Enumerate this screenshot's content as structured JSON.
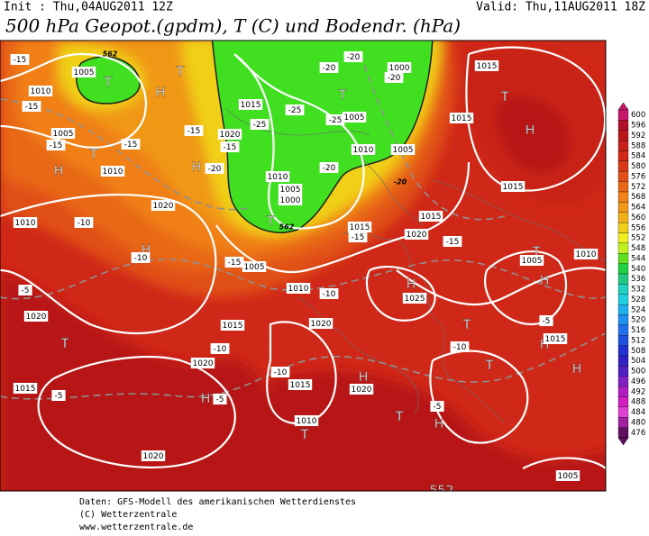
{
  "header": {
    "init": "Init : Thu,04AUG2011 12Z",
    "valid": "Valid: Thu,11AUG2011 18Z",
    "title": "500 hPa Geopot.(gpdm), T (C) und Bodendr. (hPa)"
  },
  "map": {
    "labels": [
      "1005",
      "T",
      "T",
      "H",
      "1010",
      "-15",
      "-15",
      "1005",
      "-15",
      "-15",
      "T",
      "H",
      "1010",
      "-15",
      "1020",
      "-15",
      "H",
      "-20",
      "1015",
      "-25",
      "-25",
      "-25",
      "1005",
      "T",
      "-20",
      "1000",
      "-20",
      "-20",
      "1010",
      "1005",
      "-20",
      "1010",
      "1005",
      "1000",
      "T",
      "1015",
      "-15",
      "1015",
      "1020",
      "1015",
      "T",
      "H",
      "1015",
      "1015",
      "1020",
      "1010",
      "-10",
      "H",
      "-10",
      "-15",
      "1005",
      "1010",
      "-15",
      "T",
      "1005",
      "H",
      "1010",
      "1025",
      "H",
      "-10",
      "1020",
      "-5",
      "1020",
      "T",
      "1015",
      "-10",
      "1020",
      "1015",
      "-5",
      "H",
      "-5",
      "-10",
      "1015",
      "1020",
      "H",
      "-10",
      "T",
      "-5",
      "H",
      "T",
      "H",
      "1015",
      "1010",
      "T",
      "-5",
      "H",
      "T",
      "1020",
      "1005",
      "552",
      "562",
      "562",
      "-20"
    ]
  },
  "legend": {
    "levels": [
      {
        "value": 600,
        "color": "#c8186e"
      },
      {
        "value": 596,
        "color": "#b0102a"
      },
      {
        "value": 592,
        "color": "#b81818"
      },
      {
        "value": 588,
        "color": "#c82018"
      },
      {
        "value": 584,
        "color": "#d02818"
      },
      {
        "value": 580,
        "color": "#d83818"
      },
      {
        "value": 576,
        "color": "#e05018"
      },
      {
        "value": 572,
        "color": "#e86818"
      },
      {
        "value": 568,
        "color": "#f08018"
      },
      {
        "value": 564,
        "color": "#f09818"
      },
      {
        "value": 560,
        "color": "#f0b018"
      },
      {
        "value": 556,
        "color": "#f0d018"
      },
      {
        "value": 552,
        "color": "#f0f020"
      },
      {
        "value": 548,
        "color": "#c0f020"
      },
      {
        "value": 544,
        "color": "#60e020"
      },
      {
        "value": 540,
        "color": "#20d040"
      },
      {
        "value": 536,
        "color": "#20c880"
      },
      {
        "value": 532,
        "color": "#20d0c0"
      },
      {
        "value": 528,
        "color": "#20d0e0"
      },
      {
        "value": 524,
        "color": "#20b0f0"
      },
      {
        "value": 520,
        "color": "#2090f0"
      },
      {
        "value": 516,
        "color": "#2070f0"
      },
      {
        "value": 512,
        "color": "#2050e0"
      },
      {
        "value": 508,
        "color": "#2030d0"
      },
      {
        "value": 504,
        "color": "#3020c0"
      },
      {
        "value": 500,
        "color": "#5020c0"
      },
      {
        "value": 496,
        "color": "#8020c0"
      },
      {
        "value": 492,
        "color": "#b020c0"
      },
      {
        "value": 488,
        "color": "#d020c0"
      },
      {
        "value": 484,
        "color": "#e040d0"
      },
      {
        "value": 480,
        "color": "#a020a0"
      },
      {
        "value": 476,
        "color": "#601060"
      }
    ]
  },
  "footer": {
    "source": "Daten: GFS-Modell des amerikanischen Wetterdienstes",
    "copyright": "(C) Wetterzentrale",
    "url": "www.wetterzentrale.de"
  }
}
